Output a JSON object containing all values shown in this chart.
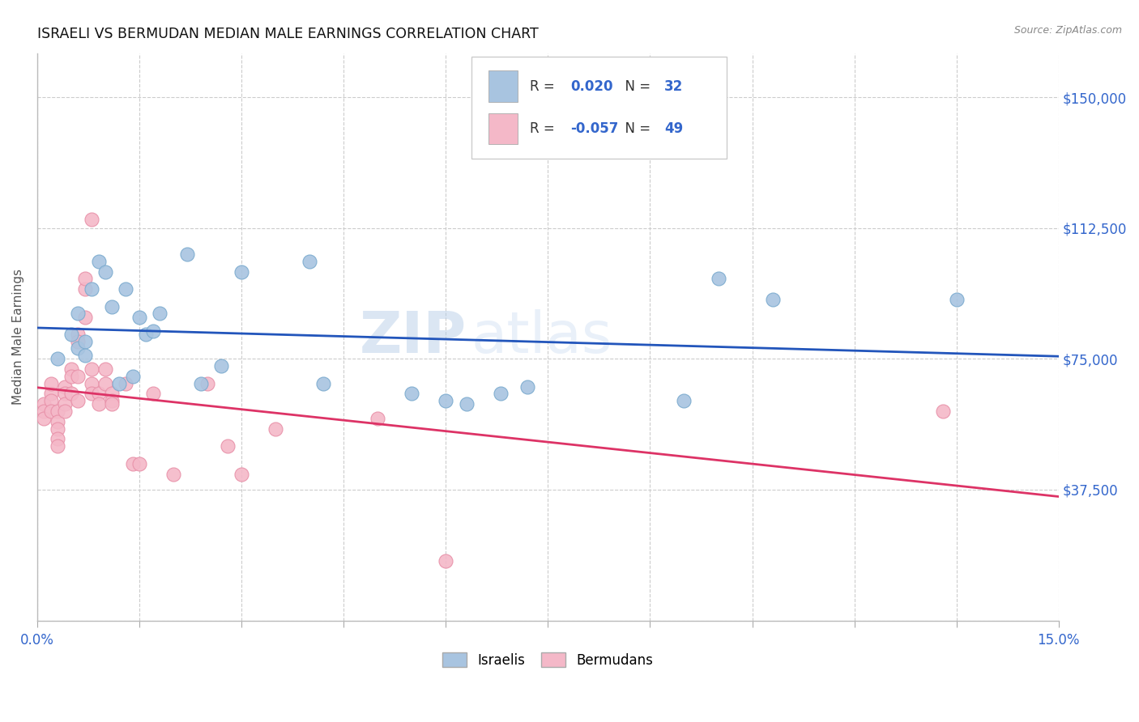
{
  "title": "ISRAELI VS BERMUDAN MEDIAN MALE EARNINGS CORRELATION CHART",
  "source_text": "Source: ZipAtlas.com",
  "ylabel": "Median Male Earnings",
  "watermark_text": "ZIP",
  "watermark_text2": "atlas",
  "xlim": [
    0.0,
    0.15
  ],
  "ylim": [
    0,
    162500
  ],
  "ytick_positions": [
    0,
    37500,
    75000,
    112500,
    150000
  ],
  "ytick_labels": [
    "",
    "$37,500",
    "$75,000",
    "$112,500",
    "$150,000"
  ],
  "legend_r_israeli": "0.020",
  "legend_n_israeli": "32",
  "legend_r_bermudan": "-0.057",
  "legend_n_bermudan": "49",
  "israeli_color": "#a8c4e0",
  "israeli_edge_color": "#7aaace",
  "bermudan_color": "#f4b8c8",
  "bermudan_edge_color": "#e890a8",
  "israeli_line_color": "#2255bb",
  "bermudan_line_color": "#dd3366",
  "background_color": "#ffffff",
  "grid_color": "#cccccc",
  "text_color": "#333333",
  "axis_color": "#3366cc",
  "israeli_x": [
    0.003,
    0.005,
    0.006,
    0.006,
    0.007,
    0.007,
    0.008,
    0.009,
    0.01,
    0.011,
    0.012,
    0.013,
    0.014,
    0.015,
    0.016,
    0.017,
    0.018,
    0.022,
    0.024,
    0.027,
    0.03,
    0.04,
    0.042,
    0.055,
    0.06,
    0.063,
    0.068,
    0.072,
    0.095,
    0.1,
    0.108,
    0.135
  ],
  "israeli_y": [
    75000,
    82000,
    78000,
    88000,
    80000,
    76000,
    95000,
    103000,
    100000,
    90000,
    68000,
    95000,
    70000,
    87000,
    82000,
    83000,
    88000,
    105000,
    68000,
    73000,
    100000,
    103000,
    68000,
    65000,
    63000,
    62000,
    65000,
    67000,
    63000,
    98000,
    92000,
    92000
  ],
  "bermudan_x": [
    0.001,
    0.001,
    0.001,
    0.002,
    0.002,
    0.002,
    0.002,
    0.003,
    0.003,
    0.003,
    0.003,
    0.003,
    0.004,
    0.004,
    0.004,
    0.004,
    0.005,
    0.005,
    0.005,
    0.006,
    0.006,
    0.006,
    0.006,
    0.007,
    0.007,
    0.007,
    0.008,
    0.008,
    0.008,
    0.008,
    0.009,
    0.009,
    0.01,
    0.01,
    0.011,
    0.011,
    0.011,
    0.013,
    0.014,
    0.015,
    0.017,
    0.02,
    0.025,
    0.028,
    0.03,
    0.035,
    0.05,
    0.06,
    0.133
  ],
  "bermudan_y": [
    62000,
    60000,
    58000,
    65000,
    63000,
    68000,
    60000,
    60000,
    57000,
    55000,
    52000,
    50000,
    67000,
    65000,
    62000,
    60000,
    72000,
    70000,
    65000,
    82000,
    80000,
    70000,
    63000,
    87000,
    95000,
    98000,
    115000,
    72000,
    68000,
    65000,
    65000,
    62000,
    72000,
    68000,
    65000,
    63000,
    62000,
    68000,
    45000,
    45000,
    65000,
    42000,
    68000,
    50000,
    42000,
    55000,
    58000,
    17000,
    60000
  ]
}
